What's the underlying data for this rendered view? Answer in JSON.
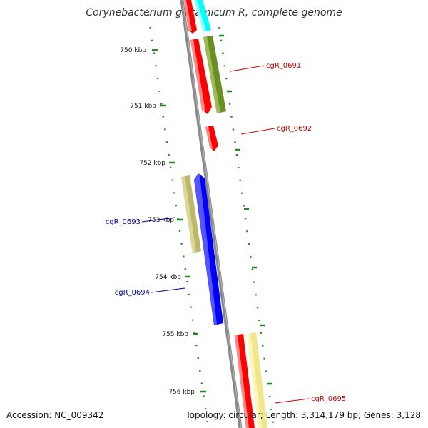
{
  "title": "Corynebacterium glutamicum R, complete genome",
  "footer": {
    "accession": "Accession: NC_009342",
    "summary": "Topology: circular; Length: 3,314,179 bp; Genes: 3,128"
  },
  "ticks": [
    "750 kbp",
    "751 kbp",
    "752 kbp",
    "753 kbp",
    "754 kbp",
    "755 kbp",
    "756 kbp"
  ],
  "genes": [
    {
      "label": "cgR_0691",
      "strand": "forward",
      "color": "#cc0000"
    },
    {
      "label": "cgR_0692",
      "strand": "forward",
      "color": "#cc0000"
    },
    {
      "label": "cgR_0693",
      "strand": "reverse",
      "color": "#000099"
    },
    {
      "label": "cgR_0694",
      "strand": "reverse",
      "color": "#000099"
    },
    {
      "label": "cgR_0695",
      "strand": "forward",
      "color": "#cc0000"
    }
  ],
  "colors": {
    "backbone": "#888888",
    "tick": "#228822",
    "red_feature": "#ff0000",
    "olive_feature": "#6b8e23",
    "cyan_feature": "#00ffff",
    "khaki_feature": "#bdb76b",
    "blue_feature": "#0000ff",
    "pale_yellow_feature": "#f0e68c"
  }
}
